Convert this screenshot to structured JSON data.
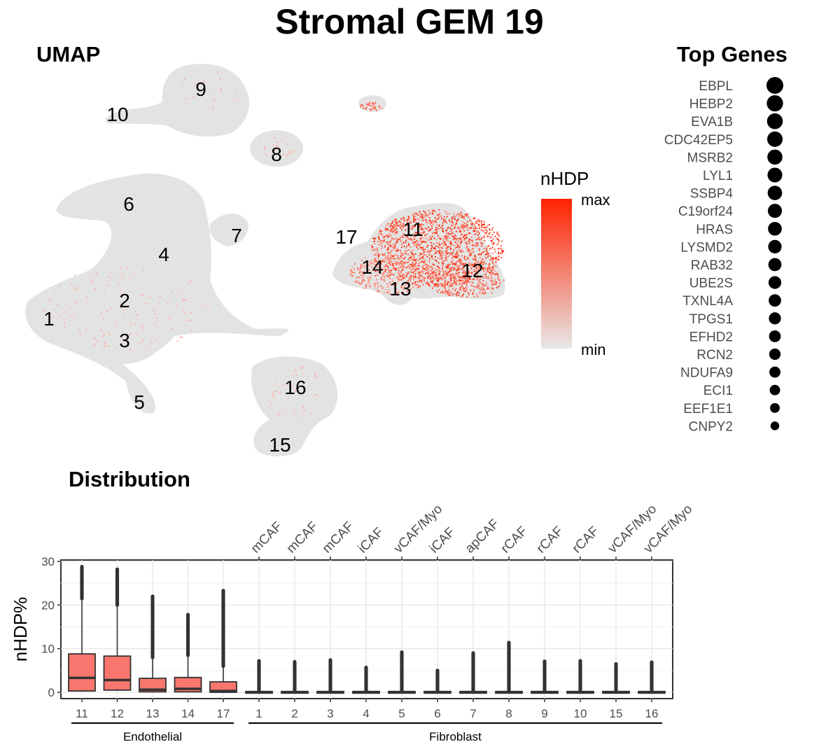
{
  "title": "Stromal GEM 19",
  "umap": {
    "title": "UMAP",
    "legend": {
      "title": "nHDP",
      "max_label": "max",
      "min_label": "min",
      "color_max": "#ff2200",
      "color_min": "#e8e8e8"
    },
    "cluster_labels": [
      "1",
      "2",
      "3",
      "4",
      "5",
      "6",
      "7",
      "8",
      "9",
      "10",
      "11",
      "12",
      "13",
      "14",
      "15",
      "16",
      "17"
    ]
  },
  "top_genes": {
    "title": "Top Genes",
    "genes": [
      "EBPL",
      "HEBP2",
      "EVA1B",
      "CDC42EP5",
      "MSRB2",
      "LYL1",
      "SSBP4",
      "C19orf24",
      "HRAS",
      "LYSMD2",
      "RAB32",
      "UBE2S",
      "TXNL4A",
      "TPGS1",
      "EFHD2",
      "RCN2",
      "NDUFA9",
      "ECI1",
      "EEF1E1",
      "CNPY2"
    ],
    "relative_size": [
      1.0,
      0.97,
      0.94,
      0.92,
      0.9,
      0.88,
      0.86,
      0.84,
      0.82,
      0.8,
      0.78,
      0.76,
      0.74,
      0.72,
      0.7,
      0.68,
      0.66,
      0.62,
      0.58,
      0.52
    ]
  },
  "distribution": {
    "title": "Distribution",
    "colors": {
      "box": "#f8766d",
      "outline": "#333333"
    }
  },
  "chart_data": {
    "type": "box",
    "ylabel": "nHDP%",
    "xlabel": "",
    "ylim": [
      0,
      30
    ],
    "yticks": [
      0,
      10,
      20,
      30
    ],
    "grid": true,
    "categories": [
      "11",
      "12",
      "13",
      "14",
      "17",
      "1",
      "2",
      "3",
      "4",
      "5",
      "6",
      "7",
      "8",
      "9",
      "10",
      "15",
      "16"
    ],
    "top_labels": [
      "",
      "",
      "",
      "",
      "",
      "mCAF",
      "mCAF",
      "mCAF",
      "iCAF",
      "vCAF/Myo",
      "iCAF",
      "apCAF",
      "rCAF",
      "rCAF",
      "rCAF",
      "vCAF/Myo",
      "vCAF/Myo"
    ],
    "groups": [
      {
        "name": "Endothelial",
        "categories": [
          "11",
          "12",
          "13",
          "14",
          "17"
        ]
      },
      {
        "name": "Fibroblast",
        "categories": [
          "1",
          "2",
          "3",
          "4",
          "5",
          "6",
          "7",
          "8",
          "9",
          "10",
          "15",
          "16"
        ]
      }
    ],
    "boxes": [
      {
        "category": "11",
        "q1": 0.3,
        "median": 3.3,
        "q3": 8.8,
        "whisker_low": 0,
        "whisker_high": 21.5,
        "max": 28.8
      },
      {
        "category": "12",
        "q1": 0.5,
        "median": 2.8,
        "q3": 8.3,
        "whisker_low": 0,
        "whisker_high": 20.0,
        "max": 28.2
      },
      {
        "category": "13",
        "q1": 0.1,
        "median": 0.6,
        "q3": 3.2,
        "whisker_low": 0,
        "whisker_high": 8.0,
        "max": 22.0
      },
      {
        "category": "14",
        "q1": 0.1,
        "median": 0.8,
        "q3": 3.4,
        "whisker_low": 0,
        "whisker_high": 8.5,
        "max": 17.8
      },
      {
        "category": "17",
        "q1": 0.0,
        "median": 0.3,
        "q3": 2.4,
        "whisker_low": 0,
        "whisker_high": 6.0,
        "max": 23.3
      },
      {
        "category": "1",
        "q1": 0,
        "median": 0,
        "q3": 0.2,
        "whisker_low": 0,
        "whisker_high": 0.5,
        "max": 7.2
      },
      {
        "category": "2",
        "q1": 0,
        "median": 0,
        "q3": 0.2,
        "whisker_low": 0,
        "whisker_high": 0.5,
        "max": 7.0
      },
      {
        "category": "3",
        "q1": 0,
        "median": 0,
        "q3": 0.2,
        "whisker_low": 0,
        "whisker_high": 0.5,
        "max": 7.4
      },
      {
        "category": "4",
        "q1": 0,
        "median": 0,
        "q3": 0.2,
        "whisker_low": 0,
        "whisker_high": 0.5,
        "max": 5.7
      },
      {
        "category": "5",
        "q1": 0,
        "median": 0,
        "q3": 0.2,
        "whisker_low": 0,
        "whisker_high": 0.5,
        "max": 9.2
      },
      {
        "category": "6",
        "q1": 0,
        "median": 0,
        "q3": 0.2,
        "whisker_low": 0,
        "whisker_high": 0.5,
        "max": 5.0
      },
      {
        "category": "7",
        "q1": 0,
        "median": 0,
        "q3": 0.2,
        "whisker_low": 0,
        "whisker_high": 0.5,
        "max": 9.0
      },
      {
        "category": "8",
        "q1": 0,
        "median": 0,
        "q3": 0.2,
        "whisker_low": 0,
        "whisker_high": 0.5,
        "max": 11.4
      },
      {
        "category": "9",
        "q1": 0,
        "median": 0,
        "q3": 0.2,
        "whisker_low": 0,
        "whisker_high": 0.5,
        "max": 7.1
      },
      {
        "category": "10",
        "q1": 0,
        "median": 0,
        "q3": 0.2,
        "whisker_low": 0,
        "whisker_high": 0.5,
        "max": 7.2
      },
      {
        "category": "15",
        "q1": 0,
        "median": 0,
        "q3": 0.2,
        "whisker_low": 0,
        "whisker_high": 0.5,
        "max": 6.5
      },
      {
        "category": "16",
        "q1": 0,
        "median": 0,
        "q3": 0.2,
        "whisker_low": 0,
        "whisker_high": 0.5,
        "max": 6.9
      }
    ]
  }
}
